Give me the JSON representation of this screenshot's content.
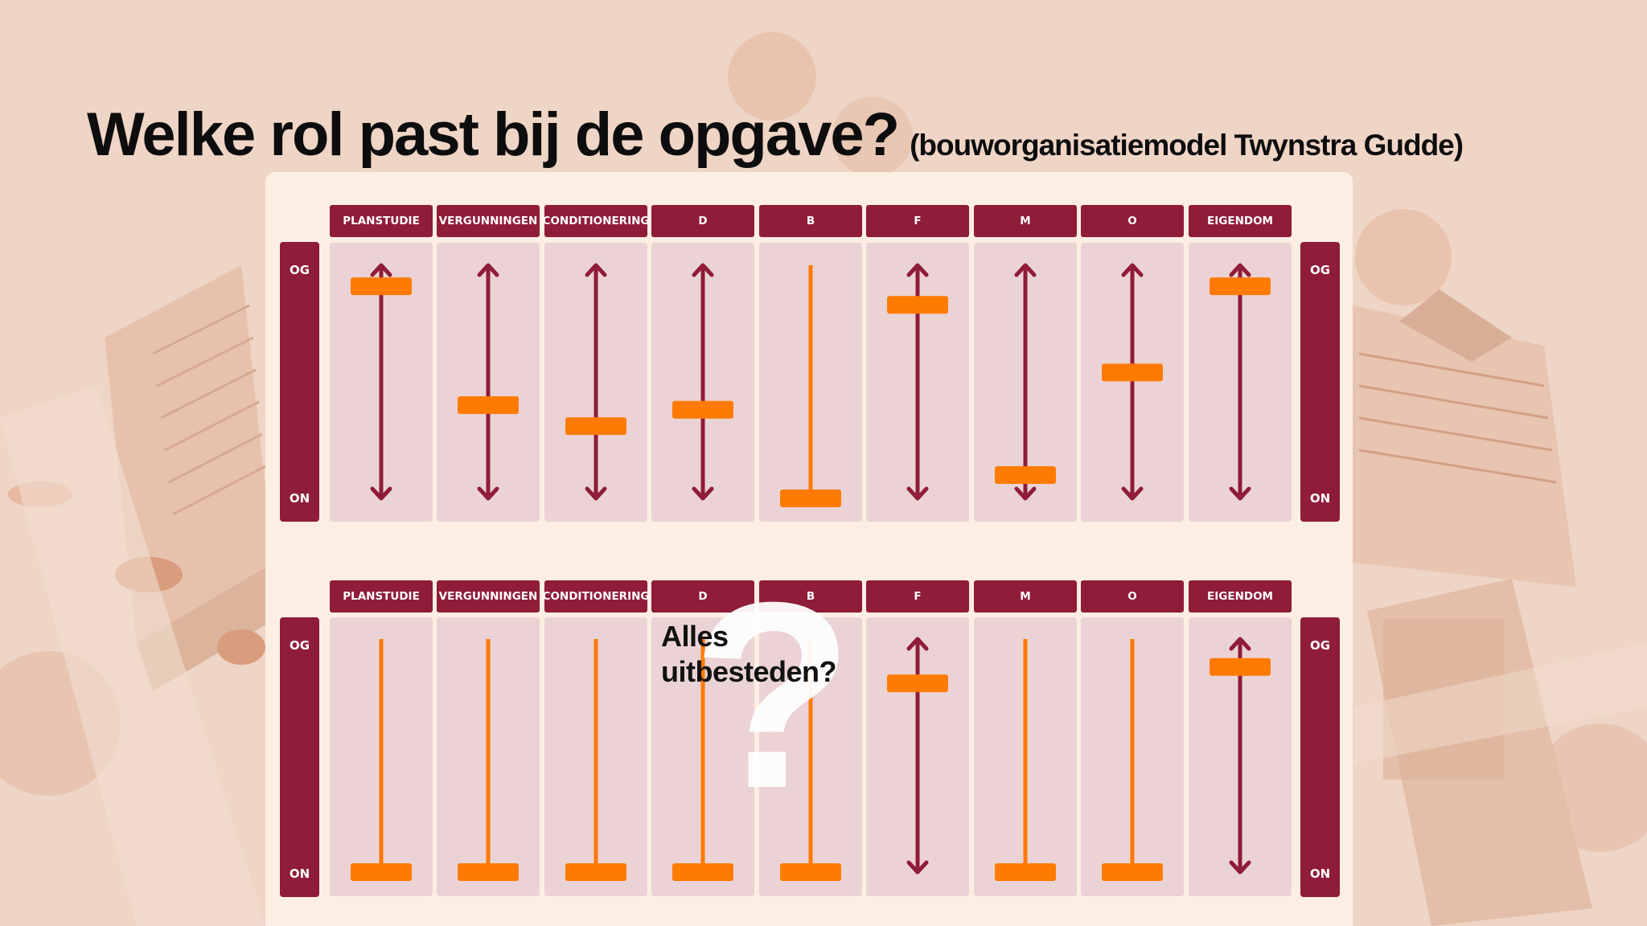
{
  "title": {
    "main": "Welke rol past bij de opgave?",
    "sub": "(bouworganisatiemodel Twynstra Gudde)"
  },
  "side_labels": {
    "top": "OG",
    "bottom": "ON"
  },
  "overlay": {
    "line1": "Alles",
    "line2": "uitbesteden?",
    "question_mark": "?"
  },
  "colors": {
    "maroon": "#8f1c38",
    "orange": "#ff7a00",
    "column_bg": "#ebd3d5",
    "panel_bg": "#fdeee3"
  },
  "rows": [
    {
      "name": "current",
      "columns": [
        {
          "label": "PLANSTUDIE",
          "position": 0.09,
          "bidirectional": true
        },
        {
          "label": "VERGUNNINGEN",
          "position": 0.6,
          "bidirectional": true
        },
        {
          "label": "CONDITIONERING",
          "position": 0.69,
          "bidirectional": true
        },
        {
          "label": "D",
          "position": 0.62,
          "bidirectional": true
        },
        {
          "label": "B",
          "position": 1.0,
          "bidirectional": false
        },
        {
          "label": "F",
          "position": 0.17,
          "bidirectional": true
        },
        {
          "label": "M",
          "position": 0.9,
          "bidirectional": true
        },
        {
          "label": "O",
          "position": 0.46,
          "bidirectional": true
        },
        {
          "label": "EIGENDOM",
          "position": 0.09,
          "bidirectional": true
        }
      ]
    },
    {
      "name": "outsourced",
      "columns": [
        {
          "label": "PLANSTUDIE",
          "position": 1.0,
          "bidirectional": false
        },
        {
          "label": "VERGUNNINGEN",
          "position": 1.0,
          "bidirectional": false
        },
        {
          "label": "CONDITIONERING",
          "position": 1.0,
          "bidirectional": false
        },
        {
          "label": "D",
          "position": 1.0,
          "bidirectional": false
        },
        {
          "label": "B",
          "position": 1.0,
          "bidirectional": false
        },
        {
          "label": "F",
          "position": 0.19,
          "bidirectional": true
        },
        {
          "label": "M",
          "position": 1.0,
          "bidirectional": false
        },
        {
          "label": "O",
          "position": 1.0,
          "bidirectional": false
        },
        {
          "label": "EIGENDOM",
          "position": 0.12,
          "bidirectional": true
        }
      ]
    }
  ]
}
